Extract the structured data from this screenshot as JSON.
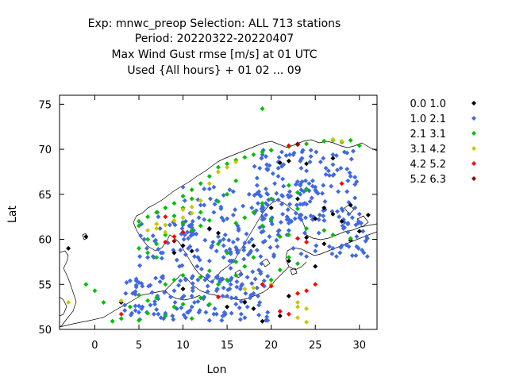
{
  "header": {
    "line1": "Exp: mnwc_preop   Selection: ALL    713 stations",
    "line2": "Period: 20220322-20220407",
    "line3": "Max Wind Gust rmse [m/s] at  01 UTC",
    "line4": "Used {All hours} + 01 02 ... 09"
  },
  "chart_data": {
    "type": "scatter",
    "title": "Max Wind Gust rmse [m/s] at  01 UTC",
    "xlabel": "Lon",
    "ylabel": "Lat",
    "xlim": [
      -4,
      32
    ],
    "ylim": [
      50,
      76
    ],
    "xticks": [
      0,
      5,
      10,
      15,
      20,
      25,
      30
    ],
    "yticks": [
      50,
      55,
      60,
      65,
      70,
      75
    ],
    "legend_position": "right",
    "series": [
      {
        "name": "0.0 1.0",
        "color": "#000000",
        "points": [
          [
            21,
            68.5
          ],
          [
            22,
            68.7
          ],
          [
            24,
            68.4
          ],
          [
            27,
            69.0
          ],
          [
            23,
            64.5
          ],
          [
            26,
            63.5
          ],
          [
            27,
            62.8
          ],
          [
            28,
            62.0
          ],
          [
            29,
            63.8
          ],
          [
            31,
            62.7
          ],
          [
            13,
            61.2
          ],
          [
            14,
            60.7
          ],
          [
            10,
            59.3
          ],
          [
            11,
            58.7
          ],
          [
            9,
            58.5
          ],
          [
            21,
            51.5
          ],
          [
            17,
            53.0
          ],
          [
            15,
            52.5
          ],
          [
            18,
            52.3
          ],
          [
            22,
            53.7
          ],
          [
            19,
            50.9
          ],
          [
            10,
            54.5
          ],
          [
            3,
            53.0
          ],
          [
            24,
            60.2
          ],
          [
            25,
            62.3
          ],
          [
            30,
            60.9
          ],
          [
            29,
            59.9
          ],
          [
            26,
            59.5
          ],
          [
            25,
            57.0
          ],
          [
            22,
            57.6
          ],
          [
            -3,
            59.0
          ],
          [
            -1,
            60.3
          ],
          [
            20,
            63.5
          ],
          [
            18,
            59.3
          ]
        ]
      },
      {
        "name": "1.0 2.1",
        "color": "#4169e1",
        "points": []
      },
      {
        "name": "2.1 3.1",
        "color": "#00c000",
        "points": [
          [
            19,
            74.5
          ],
          [
            5,
            61.5
          ],
          [
            5,
            62.0
          ],
          [
            6,
            62.5
          ],
          [
            7,
            63.0
          ],
          [
            8,
            63.5
          ],
          [
            9,
            64.0
          ],
          [
            10,
            64.8
          ],
          [
            11,
            65.5
          ],
          [
            12,
            66.2
          ],
          [
            13,
            67.0
          ],
          [
            14,
            68.0
          ],
          [
            15,
            68.4
          ],
          [
            16,
            68.8
          ],
          [
            17,
            69.1
          ],
          [
            18,
            69.4
          ],
          [
            19,
            69.7
          ],
          [
            20,
            69.9
          ],
          [
            22,
            70.3
          ],
          [
            24,
            70.6
          ],
          [
            26,
            70.9
          ],
          [
            27,
            71.0
          ],
          [
            28,
            70.8
          ],
          [
            29,
            71.0
          ],
          [
            30,
            70.4
          ],
          [
            11,
            64.5
          ],
          [
            10,
            63.5
          ],
          [
            9,
            62.6
          ],
          [
            12,
            63.0
          ],
          [
            13,
            62.1
          ],
          [
            12,
            61.5
          ],
          [
            11,
            61.0
          ],
          [
            10,
            61.8
          ],
          [
            8,
            60.5
          ],
          [
            6,
            60.0
          ],
          [
            7,
            59.5
          ],
          [
            5,
            59.0
          ],
          [
            6,
            58.5
          ],
          [
            7,
            58.0
          ],
          [
            14,
            59.5
          ],
          [
            15,
            58.5
          ],
          [
            16,
            57.5
          ],
          [
            17,
            57.0
          ],
          [
            18,
            58.0
          ],
          [
            16,
            56.0
          ],
          [
            15,
            55.5
          ],
          [
            14,
            55.0
          ],
          [
            13,
            56.5
          ],
          [
            12,
            55.8
          ],
          [
            10,
            56.0
          ],
          [
            9,
            55.5
          ],
          [
            8,
            55.0
          ],
          [
            7,
            53.5
          ],
          [
            6,
            53.2
          ],
          [
            5,
            53.8
          ],
          [
            4,
            52.5
          ],
          [
            3,
            51.2
          ],
          [
            2,
            50.9
          ],
          [
            1,
            53.0
          ],
          [
            0,
            54.3
          ],
          [
            -1,
            55.0
          ],
          [
            22,
            66.0
          ],
          [
            24,
            65.5
          ],
          [
            23,
            65.2
          ],
          [
            20,
            64.5
          ],
          [
            19,
            64.0
          ],
          [
            18,
            63.0
          ],
          [
            17,
            62.4
          ],
          [
            16,
            61.8
          ],
          [
            16,
            66.5
          ],
          [
            15,
            65.0
          ],
          [
            14,
            64.2
          ],
          [
            22,
            60.5
          ],
          [
            24,
            61.2
          ],
          [
            26,
            61.0
          ],
          [
            27,
            60.5
          ],
          [
            29,
            60.1
          ],
          [
            21,
            60.3
          ],
          [
            19,
            61.5
          ],
          [
            20,
            62.2
          ],
          [
            23,
            63.4
          ],
          [
            22,
            58.0
          ],
          [
            23,
            57.3
          ],
          [
            21,
            56.6
          ],
          [
            20,
            55.5
          ],
          [
            9,
            52.5
          ],
          [
            10,
            52.8
          ],
          [
            8,
            51.5
          ],
          [
            11,
            51.2
          ],
          [
            12,
            53.5
          ],
          [
            13,
            52.8
          ],
          [
            6,
            51.8
          ],
          [
            5,
            51.0
          ]
        ]
      },
      {
        "name": "3.1 4.2",
        "color": "#c8c800",
        "points": [
          [
            7,
            61.7
          ],
          [
            7,
            61.2
          ],
          [
            8,
            61.6
          ],
          [
            9,
            62.1
          ],
          [
            10,
            62.4
          ],
          [
            6,
            61.0
          ],
          [
            10,
            63.3
          ],
          [
            11,
            63.6
          ],
          [
            12,
            64.3
          ],
          [
            8,
            60.8
          ],
          [
            13,
            66.2
          ],
          [
            14,
            67.5
          ],
          [
            15,
            68.0
          ],
          [
            16,
            68.6
          ],
          [
            27,
            71.1
          ],
          [
            28,
            70.9
          ],
          [
            -3,
            53.0
          ],
          [
            3,
            53.2
          ],
          [
            23,
            53.0
          ],
          [
            23,
            52.5
          ],
          [
            24,
            52.3
          ],
          [
            23,
            51.3
          ],
          [
            24,
            50.8
          ],
          [
            18,
            54.6
          ],
          [
            17,
            54.5
          ],
          [
            20,
            55.0
          ],
          [
            11,
            62.9
          ]
        ]
      },
      {
        "name": "4.2 5.2",
        "color": "#ff0000",
        "points": [
          [
            8,
            62.5
          ],
          [
            9,
            60.3
          ],
          [
            8,
            59.7
          ],
          [
            10,
            60.8
          ],
          [
            22,
            70.4
          ],
          [
            23,
            70.5
          ],
          [
            21,
            52.0
          ],
          [
            22,
            51.7
          ],
          [
            23,
            54.0
          ],
          [
            24,
            54.3
          ],
          [
            25,
            55.0
          ],
          [
            28,
            66.2
          ],
          [
            23,
            60.1
          ],
          [
            24,
            59.7
          ],
          [
            3,
            51.7
          ],
          [
            14,
            53.6
          ],
          [
            19,
            55.0
          ],
          [
            20,
            54.8
          ]
        ]
      },
      {
        "name": "5.2 6.3",
        "color": "#8b0000",
        "points": [
          [
            23,
            70.6
          ],
          [
            9,
            59.8
          ]
        ]
      }
    ]
  },
  "coast_color": "#000000",
  "legend_marker": "diamond"
}
